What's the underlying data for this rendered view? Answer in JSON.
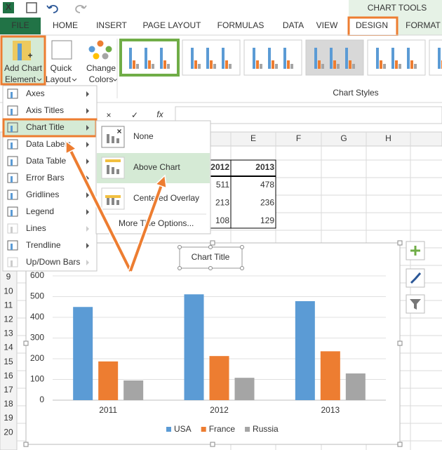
{
  "context_tab": "CHART TOOLS",
  "tabs": [
    "FILE",
    "HOME",
    "INSERT",
    "PAGE LAYOUT",
    "FORMULAS",
    "DATA",
    "VIEW",
    "DESIGN",
    "FORMAT"
  ],
  "active_tab": 7,
  "ribbon": {
    "buttons": [
      [
        "Add Chart",
        "Element"
      ],
      [
        "Quick",
        "Layout"
      ],
      [
        "Change",
        "Colors"
      ]
    ],
    "group_label": "Chart Styles"
  },
  "formula_bar": {
    "function_label": "fx"
  },
  "columns": [
    "E",
    "F",
    "G",
    "H"
  ],
  "rows": [
    "9",
    "10",
    "11",
    "12",
    "13",
    "14",
    "15",
    "16",
    "17",
    "18",
    "19",
    "20"
  ],
  "sheet": {
    "headers": [
      "2012",
      "2013"
    ],
    "rows": [
      [
        "511",
        "478"
      ],
      [
        "213",
        "236"
      ],
      [
        "108",
        "129"
      ]
    ]
  },
  "menu": {
    "highlighted": 2,
    "items": [
      {
        "label": "Axes",
        "enabled": true
      },
      {
        "label": "Axis Titles",
        "enabled": true
      },
      {
        "label": "Chart Title",
        "enabled": true
      },
      {
        "label": "Data Labels",
        "enabled": true
      },
      {
        "label": "Data Table",
        "enabled": true
      },
      {
        "label": "Error Bars",
        "enabled": true
      },
      {
        "label": "Gridlines",
        "enabled": true
      },
      {
        "label": "Legend",
        "enabled": true
      },
      {
        "label": "Lines",
        "enabled": false
      },
      {
        "label": "Trendline",
        "enabled": true
      },
      {
        "label": "Up/Down Bars",
        "enabled": false
      }
    ]
  },
  "submenu": {
    "highlighted": 1,
    "items": [
      "None",
      "Above Chart",
      "Centered Overlay"
    ],
    "more": "More Title Options..."
  },
  "chart_data": {
    "type": "bar",
    "title": "Chart Title",
    "categories": [
      "2011",
      "2012",
      "2013"
    ],
    "series": [
      {
        "name": "USA",
        "color": "#5b9bd5",
        "values": [
          450,
          511,
          478
        ]
      },
      {
        "name": "France",
        "color": "#ed7d31",
        "values": [
          187,
          213,
          236
        ]
      },
      {
        "name": "Russia",
        "color": "#a5a5a5",
        "values": [
          95,
          108,
          129
        ]
      }
    ],
    "ylim": [
      0,
      600
    ],
    "yticks": [
      0,
      100,
      200,
      300,
      400,
      500,
      600
    ],
    "grid": true,
    "legend": "bottom"
  }
}
